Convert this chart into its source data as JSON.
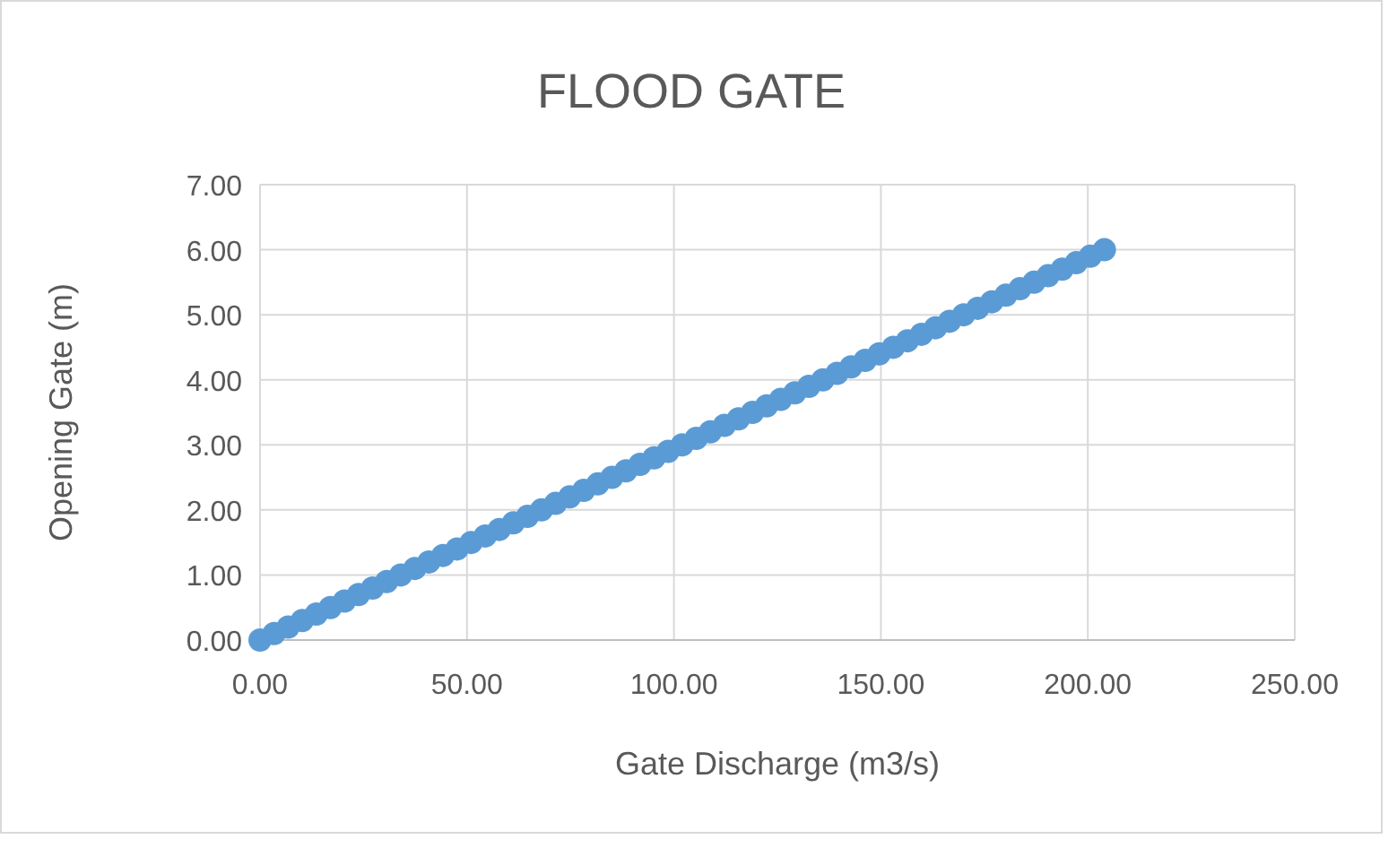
{
  "chart_data": {
    "type": "scatter",
    "title": "FLOOD GATE",
    "xlabel": "Gate Discharge (m3/s)",
    "ylabel": "Opening Gate (m)",
    "x": [
      0,
      3.4,
      6.8,
      10.2,
      13.6,
      17,
      20.4,
      23.8,
      27.2,
      30.6,
      34,
      37.4,
      40.8,
      44.2,
      47.6,
      51,
      54.4,
      57.8,
      61.2,
      64.6,
      68,
      71.4,
      74.8,
      78.2,
      81.6,
      85,
      88.4,
      91.8,
      95.2,
      98.6,
      102,
      105.4,
      108.8,
      112.2,
      115.6,
      119,
      122.4,
      125.8,
      129.2,
      132.6,
      136,
      139.4,
      142.8,
      146.2,
      149.6,
      153,
      156.4,
      159.8,
      163.2,
      166.6,
      170,
      173.4,
      176.8,
      180.2,
      183.6,
      187,
      190.4,
      193.8,
      197.2,
      200.6,
      204
    ],
    "series": [
      {
        "color": "#5b9bd5",
        "values": [
          0,
          0.1,
          0.2,
          0.3,
          0.4,
          0.5,
          0.6,
          0.7,
          0.8,
          0.9,
          1,
          1.1,
          1.2,
          1.3,
          1.4,
          1.5,
          1.6,
          1.7,
          1.8,
          1.9,
          2,
          2.1,
          2.2,
          2.3,
          2.4,
          2.5,
          2.6,
          2.7,
          2.8,
          2.9,
          3,
          3.1,
          3.2,
          3.3,
          3.4,
          3.5,
          3.6,
          3.7,
          3.8,
          3.9,
          4,
          4.1,
          4.2,
          4.3,
          4.4,
          4.5,
          4.6,
          4.7,
          4.8,
          4.9,
          5,
          5.1,
          5.2,
          5.3,
          5.4,
          5.5,
          5.6,
          5.7,
          5.8,
          5.9,
          6
        ]
      }
    ],
    "xlim": [
      0,
      250
    ],
    "xticks": [
      {
        "value": 0,
        "label": "0.00"
      },
      {
        "value": 50,
        "label": "50.00"
      },
      {
        "value": 100,
        "label": "100.00"
      },
      {
        "value": 150,
        "label": "150.00"
      },
      {
        "value": 200,
        "label": "200.00"
      },
      {
        "value": 250,
        "label": "250.00"
      }
    ],
    "ylim": [
      0,
      7
    ],
    "yticks": [
      {
        "value": 0,
        "label": "0.00"
      },
      {
        "value": 1,
        "label": "1.00"
      },
      {
        "value": 2,
        "label": "2.00"
      },
      {
        "value": 3,
        "label": "3.00"
      },
      {
        "value": 4,
        "label": "4.00"
      },
      {
        "value": 5,
        "label": "5.00"
      },
      {
        "value": 6,
        "label": "6.00"
      },
      {
        "value": 7,
        "label": "7.00"
      }
    ],
    "grid": true,
    "marker": "circle"
  }
}
